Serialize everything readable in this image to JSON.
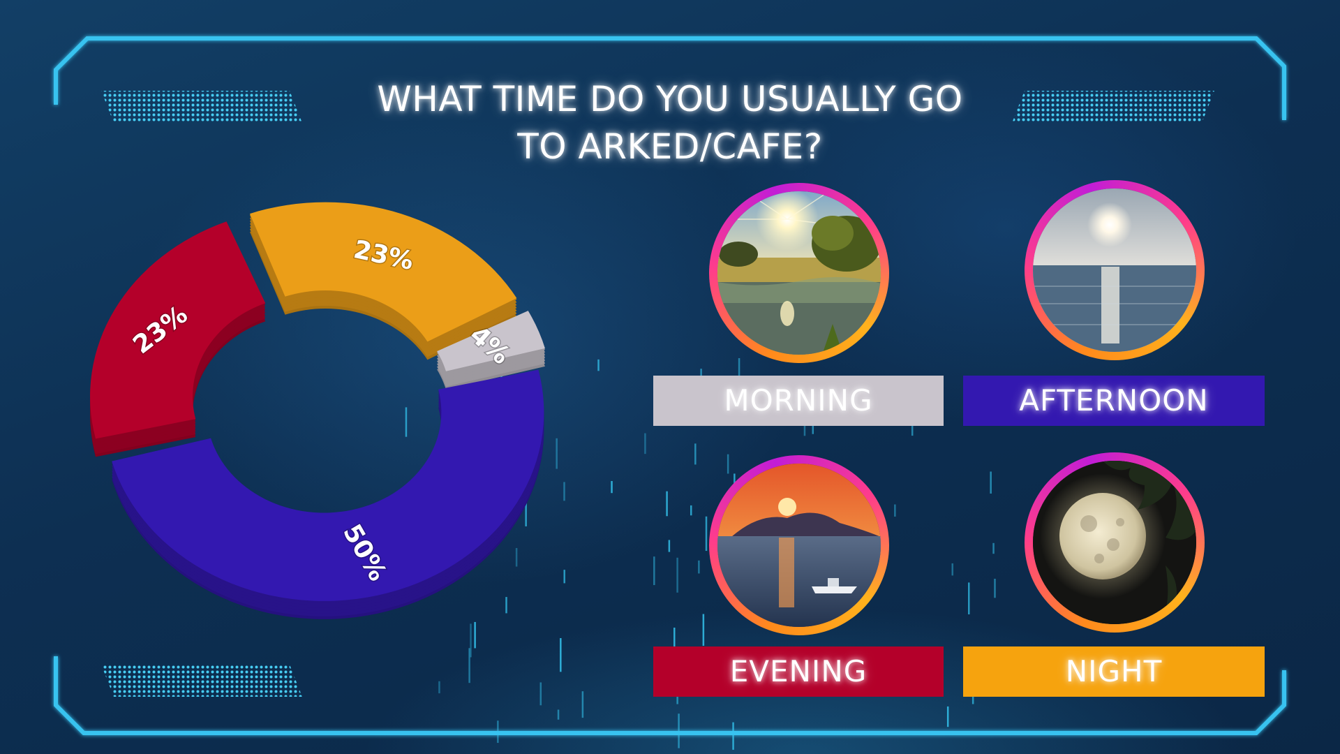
{
  "title_line1": "WHAT TIME DO YOU USUALLY GO",
  "title_line2": "TO ARKED/CAFE?",
  "colors": {
    "morning": "#c9c4cc",
    "afternoon": "#3318b0",
    "evening": "#b4002a",
    "night": "#f2a01c",
    "frame": "#38c3f0"
  },
  "chart_data": {
    "type": "pie",
    "categories": [
      "Evening",
      "Night",
      "Morning",
      "Afternoon"
    ],
    "values": [
      23,
      23,
      4,
      50
    ],
    "labels": [
      "23%",
      "23%",
      "4%",
      "50%"
    ],
    "colors": [
      "#b4002a",
      "#eb9e18",
      "#c9c4cc",
      "#3318b0"
    ],
    "style": "3d-donut, exploded"
  },
  "options": [
    {
      "label": "MORNING",
      "color": "#c9c4cc",
      "icon": "sunrise-lake-photo"
    },
    {
      "label": "AFTERNOON",
      "color": "#3318b0",
      "icon": "sun-over-sea-photo"
    },
    {
      "label": "EVENING",
      "color": "#b4002a",
      "icon": "sunset-boat-photo"
    },
    {
      "label": "NIGHT",
      "color": "#f6a30e",
      "icon": "full-moon-photo"
    }
  ]
}
